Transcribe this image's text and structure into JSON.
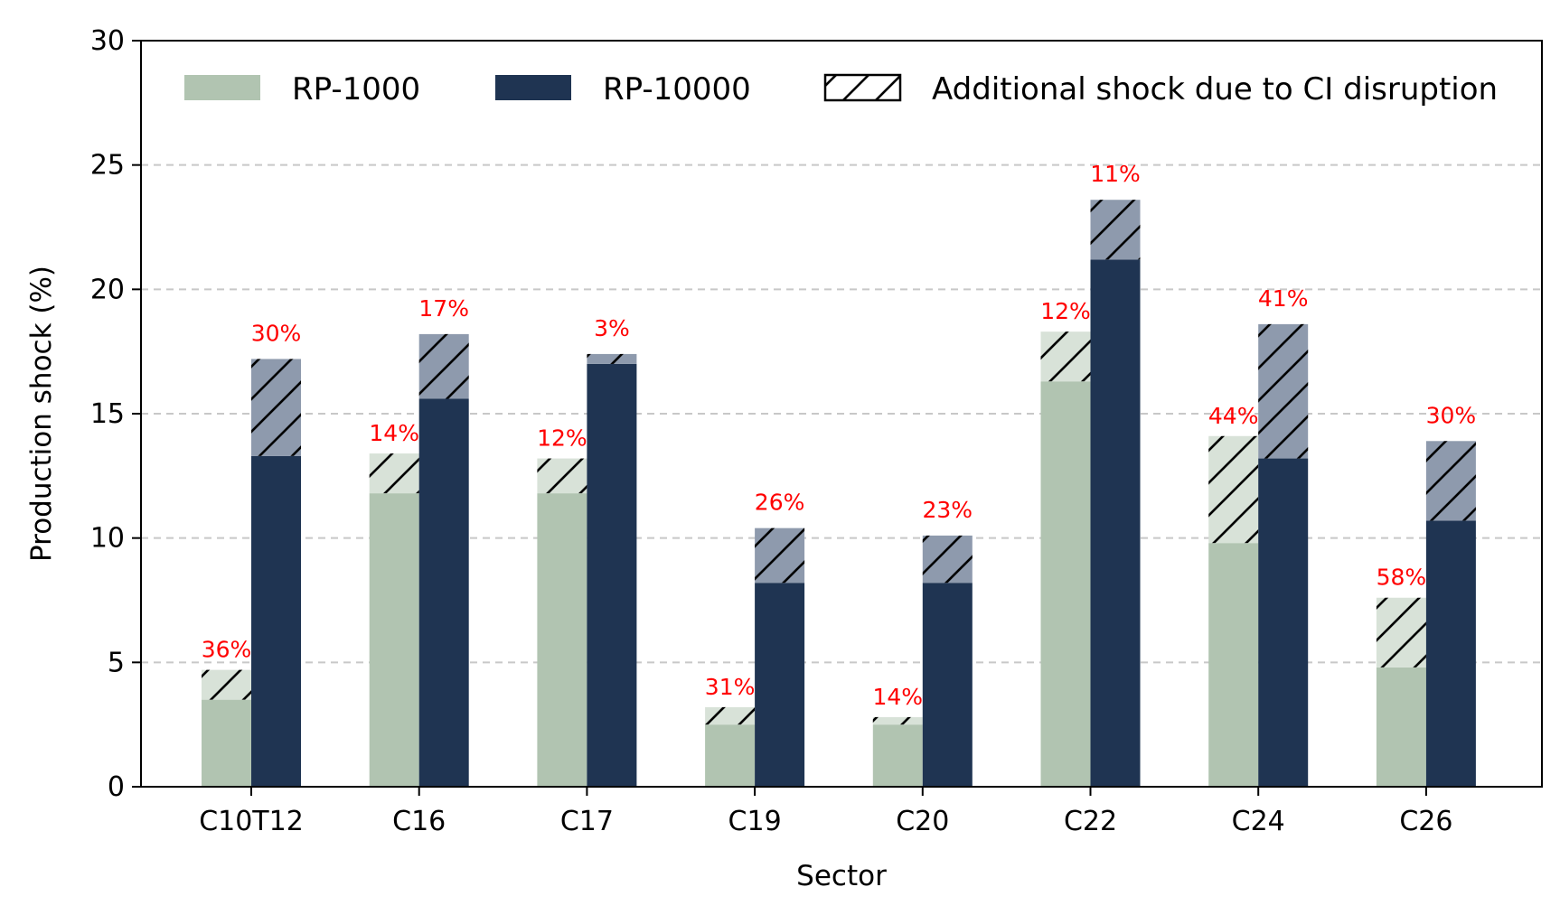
{
  "colors": {
    "rp1000": "#b1c4b1",
    "rp1000_additional": "#d8e2d8",
    "rp10000": "#1f3452",
    "rp10000_additional": "#8e9aad",
    "hatch": "#000000",
    "pct_label": "#ff0000",
    "grid": "#c8c8c8"
  },
  "legend": {
    "rp1000": "RP-1000",
    "rp10000": "RP-10000",
    "additional": "Additional shock due to CI disruption"
  },
  "chart_data": {
    "type": "bar",
    "stacked_groups": true,
    "xlabel": "Sector",
    "ylabel": "Production shock (%)",
    "ylim": [
      0,
      30
    ],
    "yticks": [
      0,
      5,
      10,
      15,
      20,
      25,
      30
    ],
    "grid": "horizontal dashed",
    "legend_position": "top",
    "categories": [
      "C10T12",
      "C16",
      "C17",
      "C19",
      "C20",
      "C22",
      "C24",
      "C26"
    ],
    "series": [
      {
        "name": "RP-1000",
        "base": [
          3.5,
          11.8,
          11.8,
          2.5,
          2.5,
          16.3,
          9.8,
          4.8
        ],
        "total": [
          4.7,
          13.4,
          13.2,
          3.2,
          2.8,
          18.3,
          14.1,
          7.6
        ],
        "labels": [
          "36%",
          "14%",
          "12%",
          "31%",
          "14%",
          "12%",
          "44%",
          "58%"
        ]
      },
      {
        "name": "RP-10000",
        "base": [
          13.3,
          15.6,
          17.0,
          8.2,
          8.2,
          21.2,
          13.2,
          10.7
        ],
        "total": [
          17.2,
          18.2,
          17.4,
          10.4,
          10.1,
          23.6,
          18.6,
          13.9
        ],
        "labels": [
          "30%",
          "17%",
          "3%",
          "26%",
          "23%",
          "11%",
          "41%",
          "30%"
        ]
      }
    ]
  }
}
